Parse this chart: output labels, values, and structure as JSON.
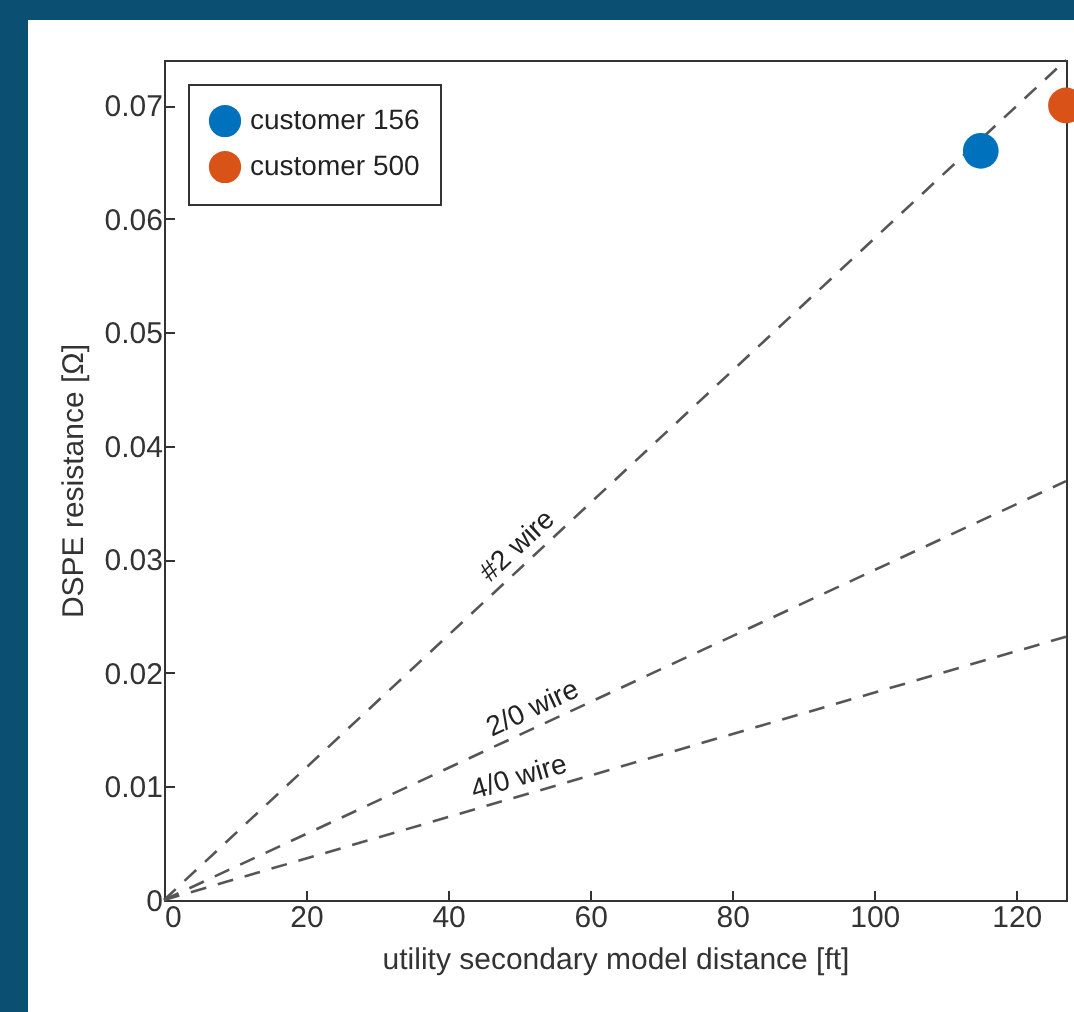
{
  "chart_data": {
    "type": "scatter",
    "xlabel": "utility secondary model distance [ft]",
    "ylabel": "DSPE resistance [Ω]",
    "xlim": [
      0,
      127
    ],
    "ylim": [
      0,
      0.074
    ],
    "xticks": [
      0,
      20,
      40,
      60,
      80,
      100,
      120
    ],
    "yticks": [
      0,
      0.01,
      0.02,
      0.03,
      0.04,
      0.05,
      0.06,
      0.07
    ],
    "grid": false,
    "legend": "top left",
    "marker": "circle",
    "series": [
      {
        "name": "customer 156",
        "color": "#0072bd",
        "x": [
          115
        ],
        "values": [
          0.066
        ]
      },
      {
        "name": "customer 500",
        "color": "#d95319",
        "x": [
          127
        ],
        "values": [
          0.07
        ]
      },
      {
        "type": "line",
        "color": "#555555",
        "line_style": "dashed",
        "marker": "none",
        "x": [
          0,
          127
        ],
        "values": [
          0,
          0.074
        ]
      },
      {
        "type": "line",
        "color": "#555555",
        "line_style": "dashed",
        "marker": "none",
        "x": [
          0,
          127
        ],
        "values": [
          0,
          0.0369
        ]
      },
      {
        "type": "line",
        "color": "#555555",
        "line_style": "dashed",
        "marker": "none",
        "x": [
          0,
          127
        ],
        "values": [
          0,
          0.0232
        ]
      }
    ],
    "annotations": [
      {
        "text": "#2 wire",
        "x": 51.5,
        "y": 0.03
      },
      {
        "text": "2/0 wire",
        "x": 53,
        "y": 0.0154
      },
      {
        "text": "4/0 wire",
        "x": 50.7,
        "y": 0.00926
      }
    ]
  }
}
